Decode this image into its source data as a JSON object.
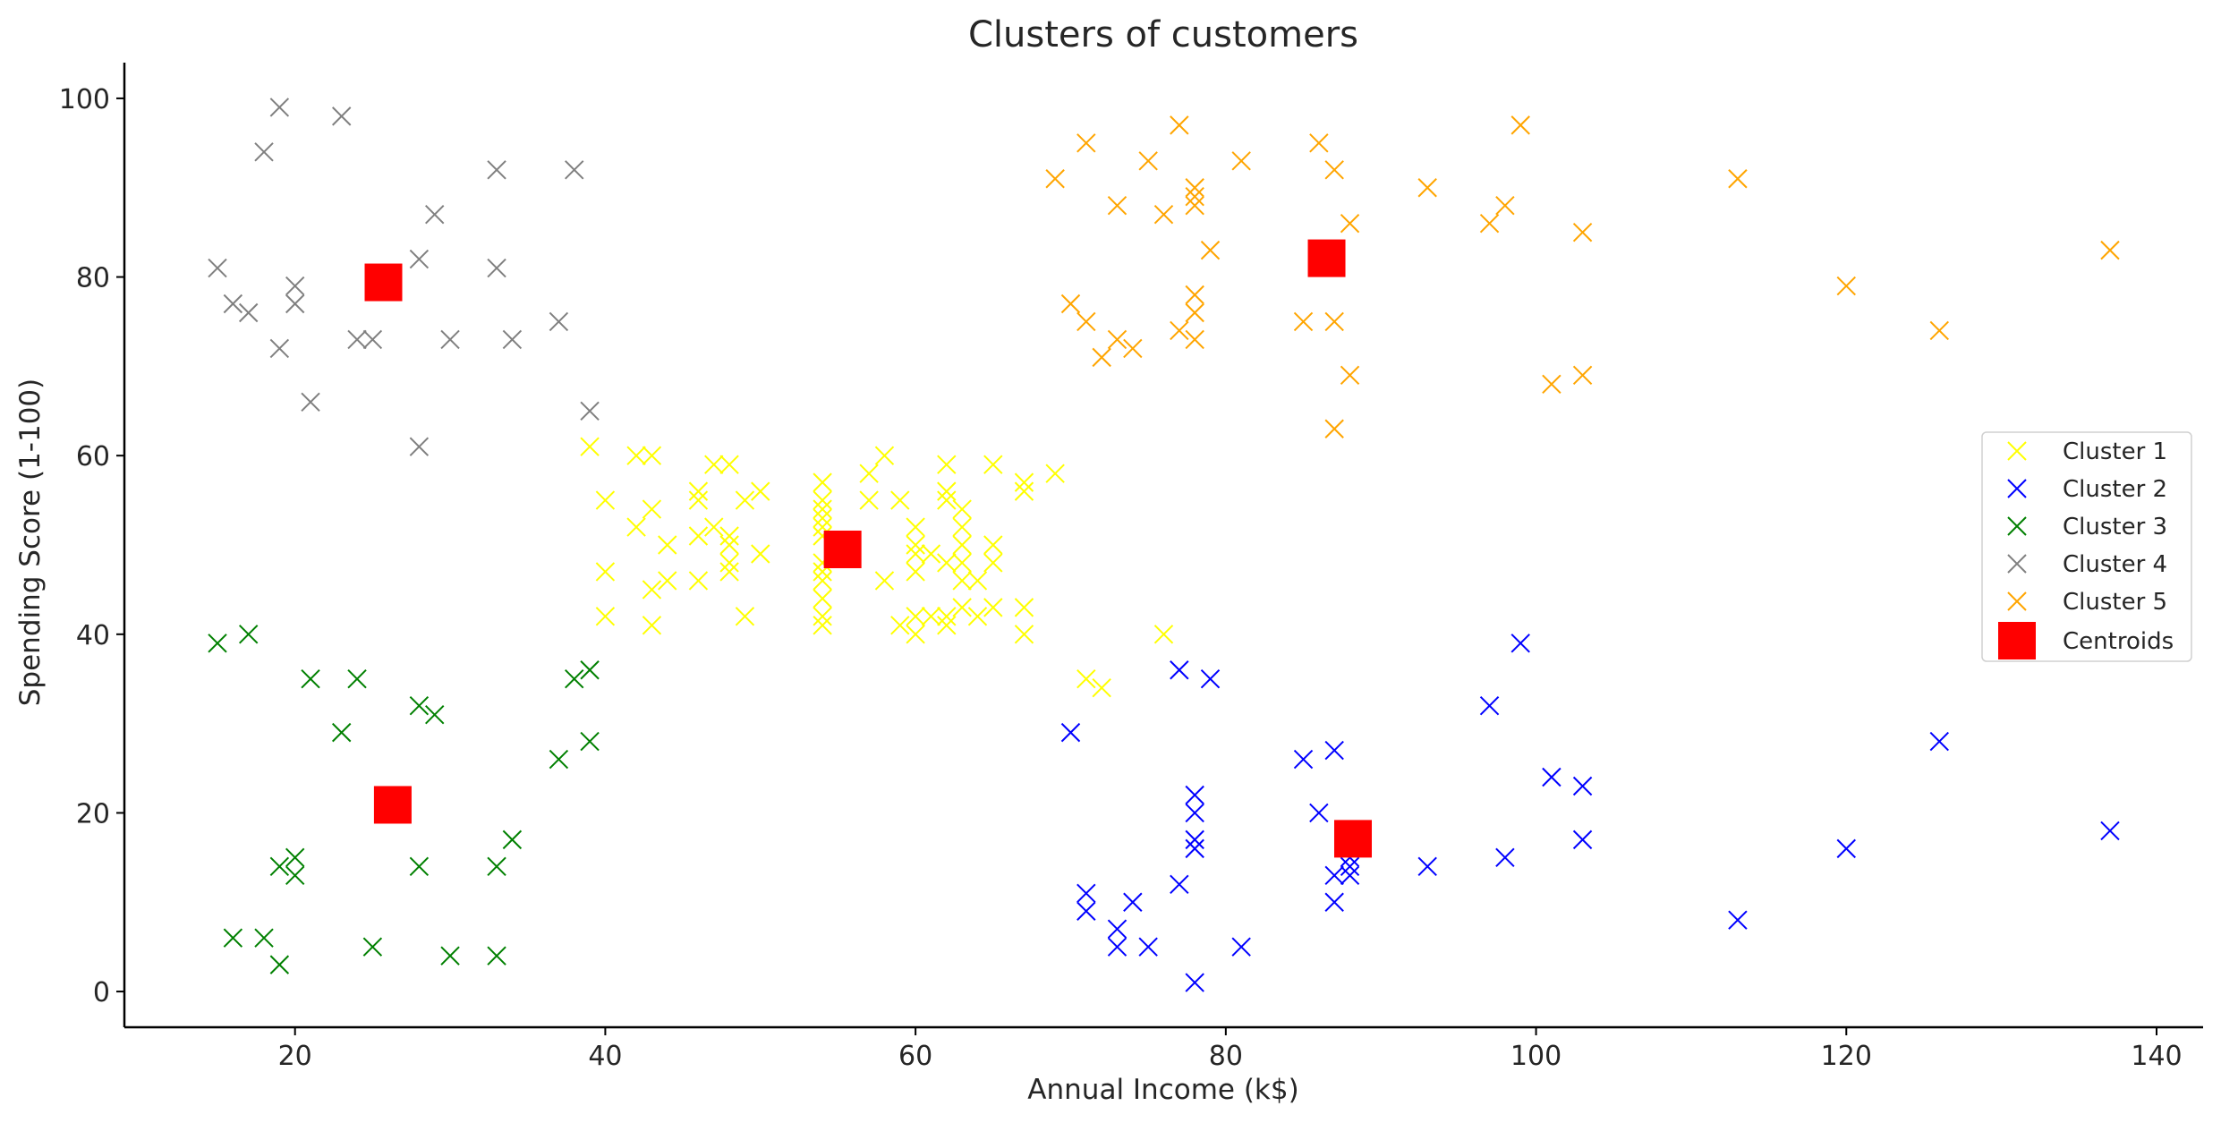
{
  "chart_data": {
    "type": "scatter",
    "title": "Clusters of customers",
    "xlabel": "Annual Income (k$)",
    "ylabel": "Spending Score (1-100)",
    "xlim": [
      9,
      143
    ],
    "ylim": [
      -4,
      104
    ],
    "xticks": [
      20,
      40,
      60,
      80,
      100,
      120,
      140
    ],
    "yticks": [
      0,
      20,
      40,
      60,
      80,
      100
    ],
    "grid": false,
    "legend_position": "center-right",
    "marker": "x",
    "series": [
      {
        "name": "Cluster 1",
        "color": "#ffff00",
        "points": [
          [
            39,
            61
          ],
          [
            40,
            55
          ],
          [
            40,
            47
          ],
          [
            40,
            42
          ],
          [
            42,
            52
          ],
          [
            42,
            60
          ],
          [
            43,
            60
          ],
          [
            43,
            54
          ],
          [
            43,
            45
          ],
          [
            43,
            41
          ],
          [
            44,
            50
          ],
          [
            44,
            46
          ],
          [
            46,
            51
          ],
          [
            46,
            46
          ],
          [
            46,
            56
          ],
          [
            46,
            55
          ],
          [
            47,
            52
          ],
          [
            47,
            59
          ],
          [
            48,
            51
          ],
          [
            48,
            59
          ],
          [
            48,
            50
          ],
          [
            48,
            48
          ],
          [
            48,
            47
          ],
          [
            49,
            55
          ],
          [
            49,
            42
          ],
          [
            50,
            49
          ],
          [
            50,
            56
          ],
          [
            54,
            47
          ],
          [
            54,
            54
          ],
          [
            54,
            53
          ],
          [
            54,
            48
          ],
          [
            54,
            52
          ],
          [
            54,
            42
          ],
          [
            54,
            51
          ],
          [
            54,
            55
          ],
          [
            54,
            41
          ],
          [
            54,
            44
          ],
          [
            54,
            57
          ],
          [
            54,
            46
          ],
          [
            57,
            58
          ],
          [
            57,
            55
          ],
          [
            58,
            60
          ],
          [
            58,
            46
          ],
          [
            59,
            55
          ],
          [
            59,
            41
          ],
          [
            60,
            49
          ],
          [
            60,
            40
          ],
          [
            60,
            42
          ],
          [
            60,
            52
          ],
          [
            60,
            47
          ],
          [
            60,
            50
          ],
          [
            61,
            42
          ],
          [
            61,
            49
          ],
          [
            62,
            41
          ],
          [
            62,
            48
          ],
          [
            62,
            59
          ],
          [
            62,
            55
          ],
          [
            62,
            56
          ],
          [
            62,
            42
          ],
          [
            63,
            50
          ],
          [
            63,
            46
          ],
          [
            63,
            43
          ],
          [
            63,
            48
          ],
          [
            63,
            52
          ],
          [
            63,
            54
          ],
          [
            64,
            42
          ],
          [
            64,
            46
          ],
          [
            65,
            48
          ],
          [
            65,
            50
          ],
          [
            65,
            43
          ],
          [
            65,
            59
          ],
          [
            67,
            43
          ],
          [
            67,
            57
          ],
          [
            67,
            56
          ],
          [
            67,
            40
          ],
          [
            69,
            58
          ],
          [
            71,
            35
          ],
          [
            72,
            34
          ],
          [
            76,
            40
          ]
        ]
      },
      {
        "name": "Cluster 2",
        "color": "#0000ff",
        "points": [
          [
            70,
            29
          ],
          [
            71,
            11
          ],
          [
            71,
            9
          ],
          [
            73,
            5
          ],
          [
            73,
            7
          ],
          [
            74,
            10
          ],
          [
            75,
            5
          ],
          [
            77,
            12
          ],
          [
            77,
            36
          ],
          [
            78,
            22
          ],
          [
            78,
            17
          ],
          [
            78,
            20
          ],
          [
            78,
            16
          ],
          [
            78,
            1
          ],
          [
            79,
            35
          ],
          [
            81,
            5
          ],
          [
            85,
            26
          ],
          [
            86,
            20
          ],
          [
            87,
            27
          ],
          [
            87,
            13
          ],
          [
            87,
            10
          ],
          [
            88,
            13
          ],
          [
            88,
            15
          ],
          [
            88,
            14
          ],
          [
            93,
            14
          ],
          [
            97,
            32
          ],
          [
            98,
            15
          ],
          [
            99,
            39
          ],
          [
            101,
            24
          ],
          [
            103,
            17
          ],
          [
            103,
            23
          ],
          [
            113,
            8
          ],
          [
            120,
            16
          ],
          [
            126,
            28
          ],
          [
            137,
            18
          ]
        ]
      },
      {
        "name": "Cluster 3",
        "color": "#008000",
        "points": [
          [
            15,
            39
          ],
          [
            16,
            6
          ],
          [
            17,
            40
          ],
          [
            18,
            6
          ],
          [
            19,
            3
          ],
          [
            19,
            14
          ],
          [
            20,
            15
          ],
          [
            20,
            13
          ],
          [
            21,
            35
          ],
          [
            23,
            29
          ],
          [
            24,
            35
          ],
          [
            25,
            5
          ],
          [
            28,
            14
          ],
          [
            28,
            32
          ],
          [
            29,
            31
          ],
          [
            30,
            4
          ],
          [
            33,
            4
          ],
          [
            33,
            14
          ],
          [
            34,
            17
          ],
          [
            37,
            26
          ],
          [
            38,
            35
          ],
          [
            39,
            36
          ],
          [
            39,
            28
          ]
        ]
      },
      {
        "name": "Cluster 4",
        "color": "#808080",
        "points": [
          [
            15,
            81
          ],
          [
            16,
            77
          ],
          [
            17,
            76
          ],
          [
            18,
            94
          ],
          [
            19,
            72
          ],
          [
            19,
            99
          ],
          [
            20,
            77
          ],
          [
            20,
            79
          ],
          [
            21,
            66
          ],
          [
            23,
            98
          ],
          [
            24,
            73
          ],
          [
            25,
            73
          ],
          [
            28,
            82
          ],
          [
            28,
            61
          ],
          [
            29,
            87
          ],
          [
            30,
            73
          ],
          [
            33,
            92
          ],
          [
            33,
            81
          ],
          [
            34,
            73
          ],
          [
            37,
            75
          ],
          [
            38,
            92
          ],
          [
            39,
            65
          ]
        ]
      },
      {
        "name": "Cluster 5",
        "color": "#ffa500",
        "points": [
          [
            69,
            91
          ],
          [
            70,
            77
          ],
          [
            71,
            95
          ],
          [
            71,
            75
          ],
          [
            72,
            71
          ],
          [
            73,
            88
          ],
          [
            73,
            73
          ],
          [
            74,
            72
          ],
          [
            75,
            93
          ],
          [
            76,
            87
          ],
          [
            77,
            97
          ],
          [
            77,
            74
          ],
          [
            78,
            90
          ],
          [
            78,
            88
          ],
          [
            78,
            76
          ],
          [
            78,
            89
          ],
          [
            78,
            78
          ],
          [
            78,
            73
          ],
          [
            79,
            83
          ],
          [
            81,
            93
          ],
          [
            85,
            75
          ],
          [
            86,
            95
          ],
          [
            87,
            63
          ],
          [
            87,
            75
          ],
          [
            87,
            92
          ],
          [
            88,
            86
          ],
          [
            88,
            69
          ],
          [
            93,
            90
          ],
          [
            97,
            86
          ],
          [
            98,
            88
          ],
          [
            99,
            97
          ],
          [
            101,
            68
          ],
          [
            103,
            85
          ],
          [
            103,
            69
          ],
          [
            113,
            91
          ],
          [
            120,
            79
          ],
          [
            126,
            74
          ],
          [
            137,
            83
          ]
        ]
      },
      {
        "name": "Centroids",
        "color": "#ff0000",
        "marker": "square",
        "points": [
          [
            25.7,
            79.4
          ],
          [
            86.5,
            82.1
          ],
          [
            26.3,
            20.9
          ],
          [
            55.3,
            49.5
          ],
          [
            88.2,
            17.1
          ]
        ]
      }
    ]
  }
}
